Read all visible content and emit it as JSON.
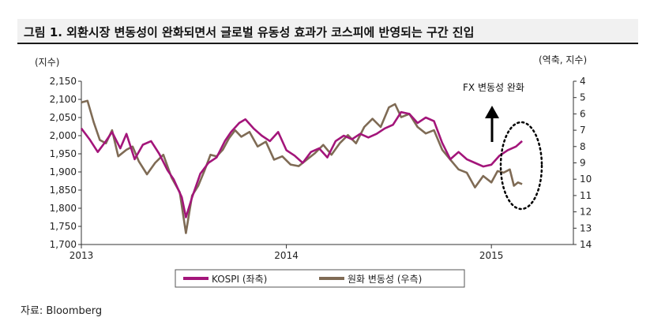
{
  "figure": {
    "title": "그림 1. 외환시장 변동성이 완화되면서 글로벌 유동성 효과가 코스피에 반영되는 구간 진입",
    "source": "자료: Bloomberg"
  },
  "chart_data": {
    "type": "line",
    "left_axis_unit": "(지수)",
    "right_axis_unit": "(역축, 지수)",
    "ylim_left": [
      1700,
      2150
    ],
    "ylim_right": [
      4,
      14
    ],
    "right_axis_inverted": true,
    "left_ticks": [
      "2,150",
      "2,100",
      "2,050",
      "2,000",
      "1,950",
      "1,900",
      "1,850",
      "1,800",
      "1,750",
      "1,700"
    ],
    "right_ticks": [
      "4",
      "5",
      "6",
      "7",
      "8",
      "9",
      "10",
      "11",
      "12",
      "13",
      "14"
    ],
    "x_ticks": [
      "2013",
      "2014",
      "2015"
    ],
    "annotation": "FX 변동성 완화",
    "colors": {
      "kospi": "#a3157a",
      "fx": "#7f6b55"
    },
    "series": [
      {
        "name": "KOSPI (좌축)",
        "axis": "left",
        "points": [
          [
            2013.0,
            2020
          ],
          [
            2013.04,
            1990
          ],
          [
            2013.08,
            1955
          ],
          [
            2013.12,
            1985
          ],
          [
            2013.15,
            2010
          ],
          [
            2013.19,
            1965
          ],
          [
            2013.22,
            2005
          ],
          [
            2013.26,
            1935
          ],
          [
            2013.3,
            1975
          ],
          [
            2013.34,
            1985
          ],
          [
            2013.38,
            1950
          ],
          [
            2013.42,
            1905
          ],
          [
            2013.45,
            1880
          ],
          [
            2013.49,
            1830
          ],
          [
            2013.51,
            1775
          ],
          [
            2013.54,
            1830
          ],
          [
            2013.58,
            1895
          ],
          [
            2013.62,
            1925
          ],
          [
            2013.66,
            1940
          ],
          [
            2013.7,
            1985
          ],
          [
            2013.73,
            2010
          ],
          [
            2013.77,
            2035
          ],
          [
            2013.8,
            2045
          ],
          [
            2013.84,
            2020
          ],
          [
            2013.88,
            2000
          ],
          [
            2013.92,
            1985
          ],
          [
            2013.96,
            2010
          ],
          [
            2014.0,
            1960
          ],
          [
            2014.04,
            1945
          ],
          [
            2014.08,
            1925
          ],
          [
            2014.12,
            1955
          ],
          [
            2014.16,
            1965
          ],
          [
            2014.2,
            1940
          ],
          [
            2014.24,
            1985
          ],
          [
            2014.28,
            2000
          ],
          [
            2014.32,
            1990
          ],
          [
            2014.36,
            2005
          ],
          [
            2014.4,
            1995
          ],
          [
            2014.44,
            2005
          ],
          [
            2014.48,
            2020
          ],
          [
            2014.52,
            2030
          ],
          [
            2014.56,
            2065
          ],
          [
            2014.6,
            2060
          ],
          [
            2014.64,
            2035
          ],
          [
            2014.68,
            2050
          ],
          [
            2014.72,
            2040
          ],
          [
            2014.76,
            1980
          ],
          [
            2014.8,
            1935
          ],
          [
            2014.84,
            1955
          ],
          [
            2014.88,
            1935
          ],
          [
            2014.92,
            1925
          ],
          [
            2014.96,
            1915
          ],
          [
            2015.0,
            1920
          ],
          [
            2015.04,
            1945
          ],
          [
            2015.08,
            1960
          ],
          [
            2015.12,
            1970
          ],
          [
            2015.15,
            1985
          ]
        ]
      },
      {
        "name": "원화 변동성 (우측)",
        "axis": "right",
        "points": [
          [
            2013.0,
            5.3
          ],
          [
            2013.03,
            5.2
          ],
          [
            2013.06,
            6.5
          ],
          [
            2013.09,
            7.6
          ],
          [
            2013.12,
            7.8
          ],
          [
            2013.15,
            7.0
          ],
          [
            2013.18,
            8.6
          ],
          [
            2013.22,
            8.2
          ],
          [
            2013.25,
            8.0
          ],
          [
            2013.28,
            8.9
          ],
          [
            2013.32,
            9.7
          ],
          [
            2013.36,
            9.0
          ],
          [
            2013.4,
            8.5
          ],
          [
            2013.44,
            9.9
          ],
          [
            2013.48,
            10.8
          ],
          [
            2013.51,
            13.3
          ],
          [
            2013.54,
            11.0
          ],
          [
            2013.57,
            10.4
          ],
          [
            2013.6,
            9.5
          ],
          [
            2013.63,
            8.5
          ],
          [
            2013.66,
            8.6
          ],
          [
            2013.69,
            8.2
          ],
          [
            2013.72,
            7.5
          ],
          [
            2013.75,
            7.0
          ],
          [
            2013.78,
            7.4
          ],
          [
            2013.82,
            7.1
          ],
          [
            2013.86,
            8.0
          ],
          [
            2013.9,
            7.7
          ],
          [
            2013.94,
            8.8
          ],
          [
            2013.98,
            8.6
          ],
          [
            2014.02,
            9.1
          ],
          [
            2014.06,
            9.2
          ],
          [
            2014.1,
            8.8
          ],
          [
            2014.14,
            8.4
          ],
          [
            2014.18,
            7.9
          ],
          [
            2014.22,
            8.5
          ],
          [
            2014.26,
            7.8
          ],
          [
            2014.3,
            7.3
          ],
          [
            2014.34,
            7.8
          ],
          [
            2014.38,
            6.8
          ],
          [
            2014.42,
            6.3
          ],
          [
            2014.46,
            6.8
          ],
          [
            2014.5,
            5.6
          ],
          [
            2014.53,
            5.4
          ],
          [
            2014.56,
            6.2
          ],
          [
            2014.6,
            6.0
          ],
          [
            2014.64,
            6.8
          ],
          [
            2014.68,
            7.2
          ],
          [
            2014.72,
            7.0
          ],
          [
            2014.76,
            8.2
          ],
          [
            2014.8,
            8.8
          ],
          [
            2014.84,
            9.4
          ],
          [
            2014.88,
            9.6
          ],
          [
            2014.92,
            10.5
          ],
          [
            2014.96,
            9.8
          ],
          [
            2015.0,
            10.2
          ],
          [
            2015.03,
            9.5
          ],
          [
            2015.06,
            9.6
          ],
          [
            2015.09,
            9.4
          ],
          [
            2015.11,
            10.4
          ],
          [
            2015.13,
            10.2
          ],
          [
            2015.15,
            10.3
          ]
        ]
      }
    ]
  }
}
